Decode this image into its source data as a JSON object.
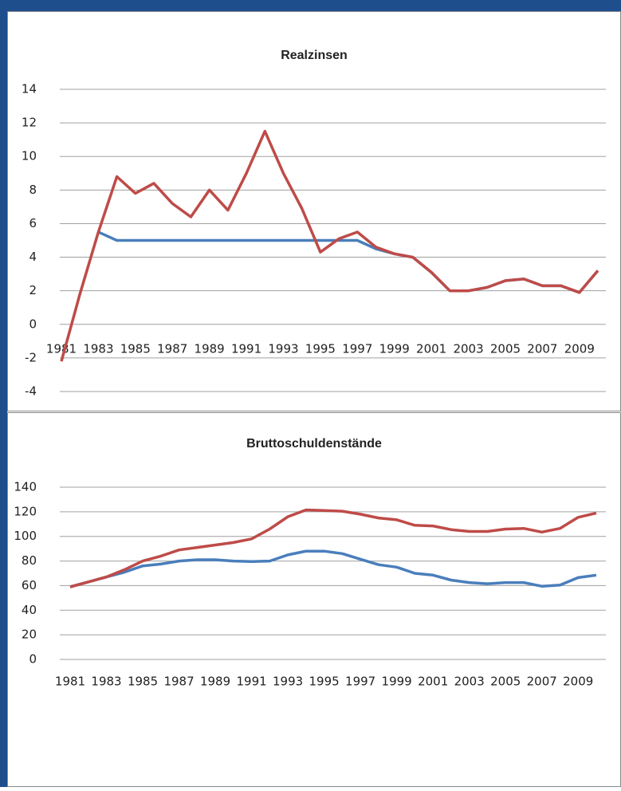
{
  "chart_data": [
    {
      "type": "line",
      "title": "Realzinsen",
      "categories": [
        "1981",
        null,
        "1983",
        null,
        "1985",
        null,
        "1987",
        null,
        "1989",
        null,
        "1991",
        null,
        "1993",
        null,
        "1995",
        null,
        "1997",
        null,
        "1999",
        null,
        "2001",
        null,
        "2003",
        null,
        "2005",
        null,
        "2007",
        null,
        "2009",
        null
      ],
      "series": [
        {
          "color": "#4a7ebb",
          "values": [
            null,
            null,
            5.5,
            5.0,
            5.0,
            5.0,
            5.0,
            5.0,
            5.0,
            5.0,
            5.0,
            5.0,
            5.0,
            5.0,
            5.0,
            5.0,
            5.0,
            4.5,
            4.2,
            4.0,
            3.1,
            2.0,
            2.0,
            2.2,
            2.6,
            2.7,
            2.3,
            2.3,
            1.9,
            3.2
          ]
        },
        {
          "color": "#be4b48",
          "values": [
            -2.2,
            1.8,
            5.5,
            8.8,
            7.8,
            8.4,
            7.2,
            6.4,
            8.0,
            6.8,
            9.0,
            11.5,
            9.0,
            6.9,
            4.3,
            5.1,
            5.5,
            4.6,
            4.2,
            4.0,
            3.1,
            2.0,
            2.0,
            2.2,
            2.6,
            2.7,
            2.3,
            2.3,
            1.9,
            3.2
          ]
        }
      ],
      "ylim": [
        -4,
        14
      ],
      "yticks": [
        -4,
        -2,
        0,
        2,
        4,
        6,
        8,
        10,
        12,
        14
      ],
      "grid": true
    },
    {
      "type": "line",
      "title": "Bruttoschuldenstände",
      "categories": [
        "1981",
        null,
        "1983",
        null,
        "1985",
        null,
        "1987",
        null,
        "1989",
        null,
        "1991",
        null,
        "1993",
        null,
        "1995",
        null,
        "1997",
        null,
        "1999",
        null,
        "2001",
        null,
        "2003",
        null,
        "2005",
        null,
        "2007",
        null,
        "2009",
        null
      ],
      "series": [
        {
          "color": "#4a7ebb",
          "values": [
            59,
            63,
            67,
            71,
            76,
            77.5,
            80,
            81,
            81,
            80,
            79.5,
            80,
            85,
            88,
            88,
            86,
            81.5,
            77,
            75,
            70,
            68.5,
            64.5,
            62.5,
            61.5,
            62.5,
            62.5,
            59.5,
            60.5,
            66.5,
            68.5
          ]
        },
        {
          "color": "#be4b48",
          "values": [
            59,
            63,
            67,
            73,
            80,
            84,
            89,
            91,
            93,
            95,
            98,
            106,
            116,
            121.5,
            121,
            120.5,
            118,
            115,
            113.5,
            109,
            108.5,
            105.5,
            104,
            104,
            106,
            106.5,
            103.5,
            106.5,
            115.5,
            119
          ]
        }
      ],
      "ylim": [
        0,
        140
      ],
      "yticks": [
        0,
        20,
        40,
        60,
        80,
        100,
        120,
        140
      ],
      "grid": true
    }
  ]
}
